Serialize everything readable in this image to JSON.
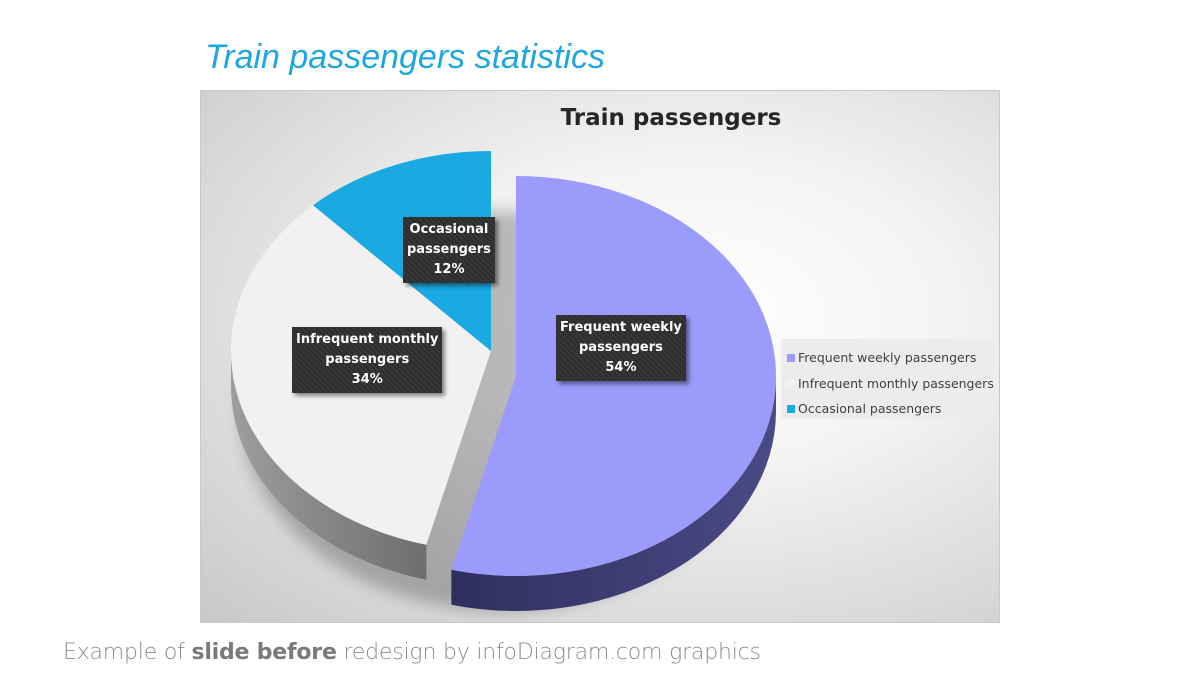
{
  "slide_title": "Train passengers statistics",
  "footer": {
    "part1": "Example of ",
    "bold": "slide before",
    "part2": " redesign by infoDiagram.com graphics"
  },
  "colors": {
    "frequent": "#9b9bfc",
    "infrequent": "#f1f1f1",
    "occasional": "#1ba9e2",
    "title": "#1ea6e0"
  },
  "chart_data": {
    "type": "pie",
    "title": "Train passengers",
    "style": "3d",
    "legend_position": "right",
    "slices": [
      {
        "name": "Frequent weekly passengers",
        "label_lines": [
          "Frequent weekly",
          "passengers"
        ],
        "value": 54,
        "value_label": "54%",
        "color": "#9b9bfc"
      },
      {
        "name": "Infrequent monthly passengers",
        "label_lines": [
          "Infrequent monthly",
          "passengers"
        ],
        "value": 34,
        "value_label": "34%",
        "color": "#f1f1f1"
      },
      {
        "name": "Occasional passengers",
        "label_lines": [
          "Occasional",
          "passengers"
        ],
        "value": 12,
        "value_label": "12%",
        "color": "#1ba9e2"
      }
    ]
  }
}
